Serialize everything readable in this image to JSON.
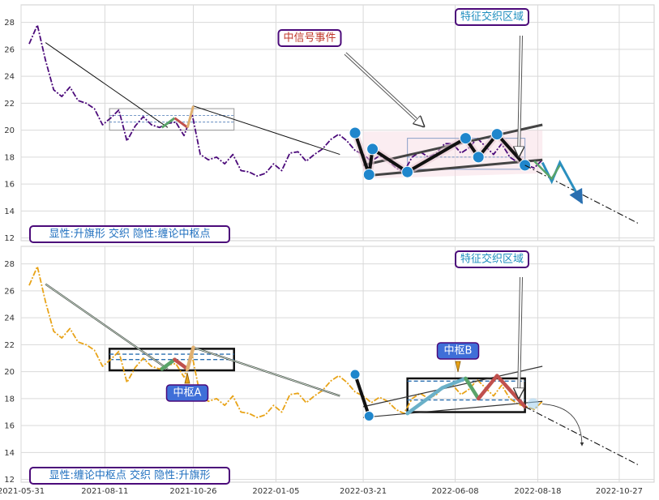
{
  "chart_data": [
    {
      "type": "line",
      "panel": "top",
      "ylim": [
        11.8,
        29.3
      ],
      "yticks": [
        12,
        14,
        16,
        18,
        20,
        22,
        24,
        26,
        28
      ],
      "ytick_labels": [
        "12",
        "14",
        "16",
        "18",
        "20",
        "22",
        "24",
        "26",
        "28"
      ],
      "legend_text": "显性:升旗形 交织 隐性:缠论中枢点",
      "annotations": [
        {
          "text": "中信号事件",
          "color": "#c0392b"
        },
        {
          "text": "特征交织区域",
          "color": "#1f8fbf"
        }
      ],
      "price_series": {
        "color": "#4b0a7a",
        "x": [
          "2021-06-07",
          "2021-06-14",
          "2021-06-21",
          "2021-06-28",
          "2021-07-05",
          "2021-07-12",
          "2021-07-19",
          "2021-07-26",
          "2021-08-02",
          "2021-08-09",
          "2021-08-16",
          "2021-08-23",
          "2021-08-30",
          "2021-09-06",
          "2021-09-13",
          "2021-09-20",
          "2021-09-27",
          "2021-10-04",
          "2021-10-11",
          "2021-10-18",
          "2021-10-25",
          "2021-11-01",
          "2021-11-08",
          "2021-11-15",
          "2021-11-22",
          "2021-11-29",
          "2021-12-06",
          "2021-12-13",
          "2021-12-20",
          "2021-12-27",
          "2022-01-03",
          "2022-01-10",
          "2022-01-17",
          "2022-01-24",
          "2022-01-31",
          "2022-02-07",
          "2022-02-14",
          "2022-02-21",
          "2022-02-28",
          "2022-03-07",
          "2022-03-14",
          "2022-03-21",
          "2022-03-28",
          "2022-04-04",
          "2022-04-11",
          "2022-04-18",
          "2022-04-25",
          "2022-05-02",
          "2022-05-09",
          "2022-05-16",
          "2022-05-23",
          "2022-05-30",
          "2022-06-06",
          "2022-06-13",
          "2022-06-20",
          "2022-06-27",
          "2022-07-04",
          "2022-07-11",
          "2022-07-18",
          "2022-07-25",
          "2022-08-01",
          "2022-08-08",
          "2022-08-15",
          "2022-08-22"
        ],
        "y": [
          26.4,
          27.8,
          25.2,
          23.0,
          22.5,
          23.2,
          22.2,
          22.0,
          21.6,
          20.4,
          20.9,
          21.5,
          19.2,
          20.3,
          21.0,
          20.4,
          20.2,
          20.5,
          20.6,
          19.6,
          21.2,
          18.2,
          17.8,
          18.0,
          17.5,
          18.2,
          17.0,
          16.9,
          16.6,
          16.8,
          17.5,
          17.0,
          18.3,
          18.4,
          17.7,
          18.2,
          18.6,
          19.3,
          19.7,
          19.2,
          18.5,
          18.2,
          17.7,
          18.1,
          17.8,
          17.2,
          16.9,
          18.0,
          18.4,
          18.0,
          18.3,
          19.0,
          19.0,
          18.3,
          18.7,
          19.4,
          18.8,
          18.2,
          19.0,
          18.0,
          17.6,
          17.4,
          17.2,
          17.8
        ]
      },
      "trend_line": {
        "x": [
          "2021-06-21",
          "2021-10-04"
        ],
        "y": [
          26.5,
          20.2
        ]
      },
      "trend_line_2": {
        "x": [
          "2021-10-26",
          "2022-03-01"
        ],
        "y": [
          21.8,
          18.2
        ]
      },
      "flag_upper": {
        "x": [
          "2022-03-21",
          "2022-08-22"
        ],
        "y": [
          17.4,
          20.4
        ]
      },
      "flag_lower": {
        "x": [
          "2022-03-21",
          "2022-08-22"
        ],
        "y": [
          16.6,
          17.8
        ]
      },
      "zigzag": {
        "x": [
          "2022-03-14",
          "2022-03-26",
          "2022-03-29",
          "2022-04-28",
          "2022-06-17",
          "2022-06-28",
          "2022-07-14",
          "2022-08-07"
        ],
        "y": [
          19.8,
          16.7,
          18.6,
          16.9,
          19.4,
          18.0,
          19.7,
          17.4
        ]
      },
      "pivot_points": {
        "x": [
          "2022-03-14",
          "2022-03-26",
          "2022-03-29",
          "2022-04-28",
          "2022-06-17",
          "2022-06-28",
          "2022-07-14",
          "2022-08-07"
        ],
        "y": [
          19.8,
          16.7,
          18.6,
          16.9,
          19.4,
          18.0,
          19.7,
          17.4
        ]
      },
      "forecast_line": {
        "x": [
          "2022-08-07",
          "2022-11-12"
        ],
        "y": [
          17.4,
          13.1
        ]
      },
      "projection_arrow": {
        "x": [
          "2022-08-22",
          "2022-09-25"
        ],
        "y": [
          17.8,
          14.6
        ]
      }
    },
    {
      "type": "line",
      "panel": "bottom",
      "ylim": [
        11.8,
        29.3
      ],
      "yticks": [
        12,
        14,
        16,
        18,
        20,
        22,
        24,
        26,
        28
      ],
      "ytick_labels": [
        "12",
        "14",
        "16",
        "18",
        "20",
        "22",
        "24",
        "26",
        "28"
      ],
      "xlim": [
        "2021-05-31",
        "2022-11-26"
      ],
      "xticks": [
        "2021-05-31",
        "2021-08-11",
        "2021-10-26",
        "2022-01-05",
        "2022-03-21",
        "2022-06-08",
        "2022-08-18",
        "2022-10-27"
      ],
      "xtick_labels": [
        "2021-05-31",
        "2021-08-11",
        "2021-10-26",
        "2022-01-05",
        "2022-03-21",
        "2022-06-08",
        "2022-08-18",
        "2022-10-27"
      ],
      "legend_text": "显性:缠论中枢点 交织 隐性:升旗形",
      "annotations": [
        {
          "text": "中枢A",
          "color": "#ffffff"
        },
        {
          "text": "中枢B",
          "color": "#ffffff"
        },
        {
          "text": "特征交织区域",
          "color": "#1f8fbf"
        }
      ],
      "price_series": {
        "color": "#e8a317",
        "x": [
          "2021-06-07",
          "2021-06-14",
          "2021-06-21",
          "2021-06-28",
          "2021-07-05",
          "2021-07-12",
          "2021-07-19",
          "2021-07-26",
          "2021-08-02",
          "2021-08-09",
          "2021-08-16",
          "2021-08-23",
          "2021-08-30",
          "2021-09-06",
          "2021-09-13",
          "2021-09-20",
          "2021-09-27",
          "2021-10-04",
          "2021-10-11",
          "2021-10-18",
          "2021-10-25",
          "2021-11-01",
          "2021-11-08",
          "2021-11-15",
          "2021-11-22",
          "2021-11-29",
          "2021-12-06",
          "2021-12-13",
          "2021-12-20",
          "2021-12-27",
          "2022-01-03",
          "2022-01-10",
          "2022-01-17",
          "2022-01-24",
          "2022-01-31",
          "2022-02-07",
          "2022-02-14",
          "2022-02-21",
          "2022-02-28",
          "2022-03-07",
          "2022-03-14",
          "2022-03-21",
          "2022-03-28",
          "2022-04-04",
          "2022-04-11",
          "2022-04-18",
          "2022-04-25",
          "2022-05-02",
          "2022-05-09",
          "2022-05-16",
          "2022-05-23",
          "2022-05-30",
          "2022-06-06",
          "2022-06-13",
          "2022-06-20",
          "2022-06-27",
          "2022-07-04",
          "2022-07-11",
          "2022-07-18",
          "2022-07-25",
          "2022-08-01",
          "2022-08-08",
          "2022-08-15",
          "2022-08-22"
        ],
        "y": [
          26.4,
          27.8,
          25.2,
          23.0,
          22.5,
          23.2,
          22.2,
          22.0,
          21.6,
          20.4,
          20.9,
          21.5,
          19.2,
          20.3,
          21.0,
          20.4,
          20.2,
          20.5,
          20.6,
          19.6,
          21.2,
          18.2,
          17.8,
          18.0,
          17.5,
          18.2,
          17.0,
          16.9,
          16.6,
          16.8,
          17.5,
          17.0,
          18.3,
          18.4,
          17.7,
          18.2,
          18.6,
          19.3,
          19.7,
          19.2,
          18.5,
          18.2,
          17.7,
          18.1,
          17.8,
          17.2,
          16.9,
          18.0,
          18.4,
          18.0,
          18.3,
          19.0,
          19.0,
          18.3,
          18.7,
          19.4,
          18.8,
          18.2,
          19.0,
          18.0,
          17.6,
          17.4,
          17.2,
          17.8
        ]
      },
      "trend_line": {
        "x": [
          "2021-06-21",
          "2021-10-04"
        ],
        "y": [
          26.5,
          20.2
        ]
      },
      "trend_line_2": {
        "x": [
          "2021-10-26",
          "2022-03-01"
        ],
        "y": [
          21.8,
          18.2
        ]
      },
      "flag_upper": {
        "x": [
          "2022-03-21",
          "2022-08-22"
        ],
        "y": [
          17.4,
          20.4
        ]
      },
      "flag_lower": {
        "x": [
          "2022-03-21",
          "2022-08-22"
        ],
        "y": [
          16.6,
          17.8
        ]
      },
      "zhongshu_A": {
        "x": [
          "2021-08-15",
          "2021-11-30"
        ],
        "y_low": 20.1,
        "y_high": 21.7,
        "mid": 20.9,
        "band_low": 20.5,
        "band_high": 21.3
      },
      "zhongshu_B": {
        "x": [
          "2022-04-28",
          "2022-08-07"
        ],
        "y_low": 17.0,
        "y_high": 19.5,
        "mid": 17.9,
        "band_low": 17.6,
        "band_high": 19.3
      },
      "zigzag": {
        "x": [
          "2021-09-29",
          "2021-10-10",
          "2021-10-21",
          "2021-10-26",
          "2022-04-28",
          "2022-05-28",
          "2022-06-17",
          "2022-06-28",
          "2022-07-14",
          "2022-08-07"
        ],
        "y": [
          20.2,
          20.9,
          20.2,
          21.8,
          16.9,
          18.8,
          19.5,
          18.0,
          19.7,
          17.4
        ],
        "colors": [
          "#5aa469",
          "#c0504d",
          "#e0b070",
          "#c2c2c2",
          "#6ab0c8",
          "#6ab0c8",
          "#5aa469",
          "#c0504d",
          "#c0504d"
        ]
      },
      "pivot_points": {
        "x": [
          "2022-03-14",
          "2022-03-26"
        ],
        "y": [
          19.8,
          16.7
        ]
      },
      "forecast_line": {
        "x": [
          "2022-08-07",
          "2022-11-12"
        ],
        "y": [
          17.4,
          13.1
        ]
      },
      "projection_arrow": {
        "x": [
          "2022-08-22",
          "2022-09-25"
        ],
        "y": [
          17.7,
          14.5
        ]
      }
    }
  ]
}
